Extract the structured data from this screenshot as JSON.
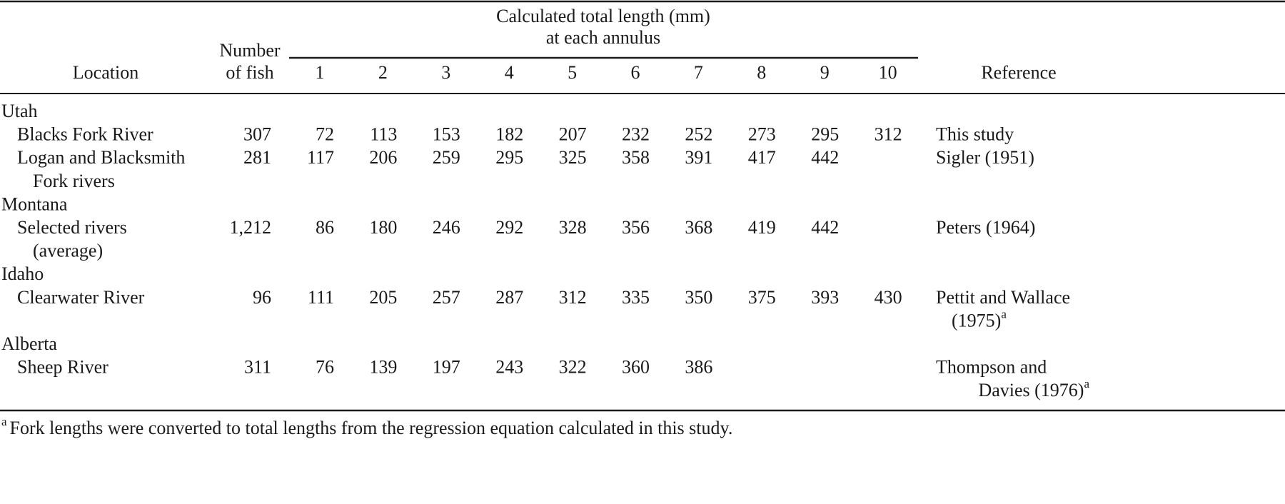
{
  "table": {
    "header": {
      "location": "Location",
      "number_of_fish": [
        "Number",
        "of fish"
      ],
      "lengths_title": [
        "Calculated total length (mm)",
        "at each annulus"
      ],
      "annuli": [
        1,
        2,
        3,
        4,
        5,
        6,
        7,
        8,
        9,
        10
      ],
      "reference": "Reference"
    },
    "groups": [
      {
        "region": "Utah",
        "entries": [
          {
            "location": [
              "Blacks Fork River"
            ],
            "number_of_fish": 307,
            "lengths": [
              72,
              113,
              153,
              182,
              207,
              232,
              252,
              273,
              295,
              312
            ],
            "reference": [
              "This study"
            ]
          },
          {
            "location": [
              "Logan and Blacksmith",
              "Fork rivers"
            ],
            "number_of_fish": 281,
            "lengths": [
              117,
              206,
              259,
              295,
              325,
              358,
              391,
              417,
              442,
              null
            ],
            "reference": [
              "Sigler (1951)"
            ]
          }
        ]
      },
      {
        "region": "Montana",
        "entries": [
          {
            "location": [
              "Selected rivers",
              "(average)"
            ],
            "number_of_fish": "1,212",
            "lengths": [
              86,
              180,
              246,
              292,
              328,
              356,
              368,
              419,
              442,
              null
            ],
            "reference": [
              "Peters (1964)"
            ]
          }
        ]
      },
      {
        "region": "Idaho",
        "entries": [
          {
            "location": [
              "Clearwater River"
            ],
            "number_of_fish": 96,
            "lengths": [
              111,
              205,
              257,
              287,
              312,
              335,
              350,
              375,
              393,
              430
            ],
            "reference": [
              "Pettit and Wallace",
              "(1975)"
            ],
            "reference_note": "a"
          }
        ]
      },
      {
        "region": "Alberta",
        "entries": [
          {
            "location": [
              "Sheep River"
            ],
            "number_of_fish": 311,
            "lengths": [
              76,
              139,
              197,
              243,
              322,
              360,
              386,
              null,
              null,
              null
            ],
            "reference": [
              "Thompson and",
              "Davies (1976)"
            ],
            "reference_note": "a"
          }
        ]
      }
    ],
    "footnote": {
      "marker": "a",
      "text": "Fork lengths were converted to total lengths from the regression equation calculated in this study."
    }
  }
}
